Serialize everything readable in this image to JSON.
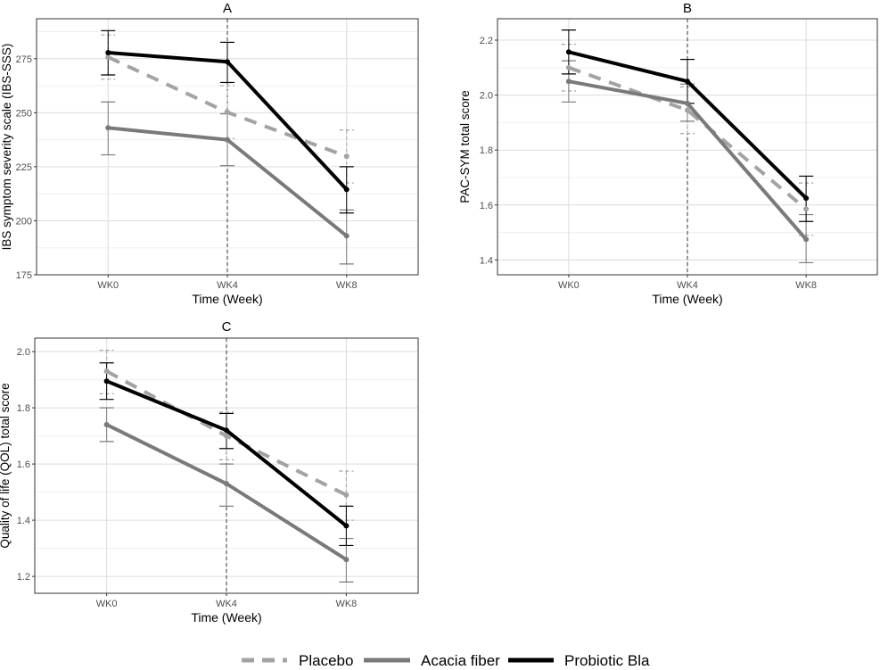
{
  "chart_data": [
    {
      "type": "line",
      "title": "A",
      "xlabel": "Time (Week)",
      "ylabel": "IBS symptom severity scale (IBS-SSS)",
      "categories": [
        "WK0",
        "WK4",
        "WK8"
      ],
      "ylim": [
        175,
        293.5
      ],
      "yticks": [
        175,
        200,
        225,
        250,
        275
      ],
      "grid": true,
      "vline_at": "WK4",
      "series": [
        {
          "name": "Placebo",
          "values": [
            275.7,
            250.2,
            229.8
          ],
          "upper": [
            286,
            262.5,
            242
          ],
          "lower": [
            265.5,
            238,
            217.5
          ]
        },
        {
          "name": "Acacia fiber",
          "values": [
            243,
            237.5,
            193
          ],
          "upper": [
            255,
            249.5,
            205
          ],
          "lower": [
            230.5,
            225.5,
            180
          ]
        },
        {
          "name": "Probiotic Bla",
          "values": [
            277.8,
            273.6,
            214.5
          ],
          "upper": [
            288,
            282.6,
            225
          ],
          "lower": [
            267.5,
            264,
            203.6
          ]
        }
      ]
    },
    {
      "type": "line",
      "title": "B",
      "xlabel": "Time (Week)",
      "ylabel": "PAC-SYM total score",
      "categories": [
        "WK0",
        "WK4",
        "WK8"
      ],
      "ylim": [
        1.346,
        2.278
      ],
      "yticks": [
        1.4,
        1.6,
        1.8,
        2.0,
        2.2
      ],
      "grid": true,
      "vline_at": "WK4",
      "series": [
        {
          "name": "Placebo",
          "values": [
            2.1,
            1.945,
            1.585
          ],
          "upper": [
            2.185,
            2.03,
            1.68
          ],
          "lower": [
            2.015,
            1.86,
            1.49
          ]
        },
        {
          "name": "Acacia fiber",
          "values": [
            2.05,
            1.97,
            1.475
          ],
          "upper": [
            2.125,
            2.04,
            1.565
          ],
          "lower": [
            1.975,
            1.905,
            1.39
          ]
        },
        {
          "name": "Probiotic Bla",
          "values": [
            2.157,
            2.05,
            1.625
          ],
          "upper": [
            2.237,
            2.13,
            1.705
          ],
          "lower": [
            2.077,
            1.97,
            1.54
          ]
        }
      ]
    },
    {
      "type": "line",
      "title": "C",
      "xlabel": "Time (Week)",
      "ylabel": "Quality of life (QOL) total score",
      "categories": [
        "WK0",
        "WK4",
        "WK8"
      ],
      "ylim": [
        1.14,
        2.048
      ],
      "yticks": [
        1.2,
        1.4,
        1.6,
        1.8,
        2.0
      ],
      "grid": true,
      "vline_at": "WK4",
      "series": [
        {
          "name": "Placebo",
          "values": [
            1.93,
            1.7,
            1.49
          ],
          "upper": [
            2.005,
            1.785,
            1.575
          ],
          "lower": [
            1.85,
            1.615,
            1.4
          ]
        },
        {
          "name": "Acacia fiber",
          "values": [
            1.74,
            1.53,
            1.26
          ],
          "upper": [
            1.8,
            1.6,
            1.335
          ],
          "lower": [
            1.68,
            1.45,
            1.18
          ]
        },
        {
          "name": "Probiotic Bla",
          "values": [
            1.895,
            1.72,
            1.38
          ],
          "upper": [
            1.96,
            1.78,
            1.45
          ],
          "lower": [
            1.83,
            1.655,
            1.31
          ]
        }
      ]
    }
  ],
  "legend": {
    "position": "bottom",
    "items": [
      {
        "label": "Placebo",
        "color": "#a3a3a3",
        "style": "dashed"
      },
      {
        "label": "Acacia fiber",
        "color": "#7a7a7a",
        "style": "solid"
      },
      {
        "label": "Probiotic Bla",
        "color": "#000000",
        "style": "solid"
      }
    ]
  }
}
